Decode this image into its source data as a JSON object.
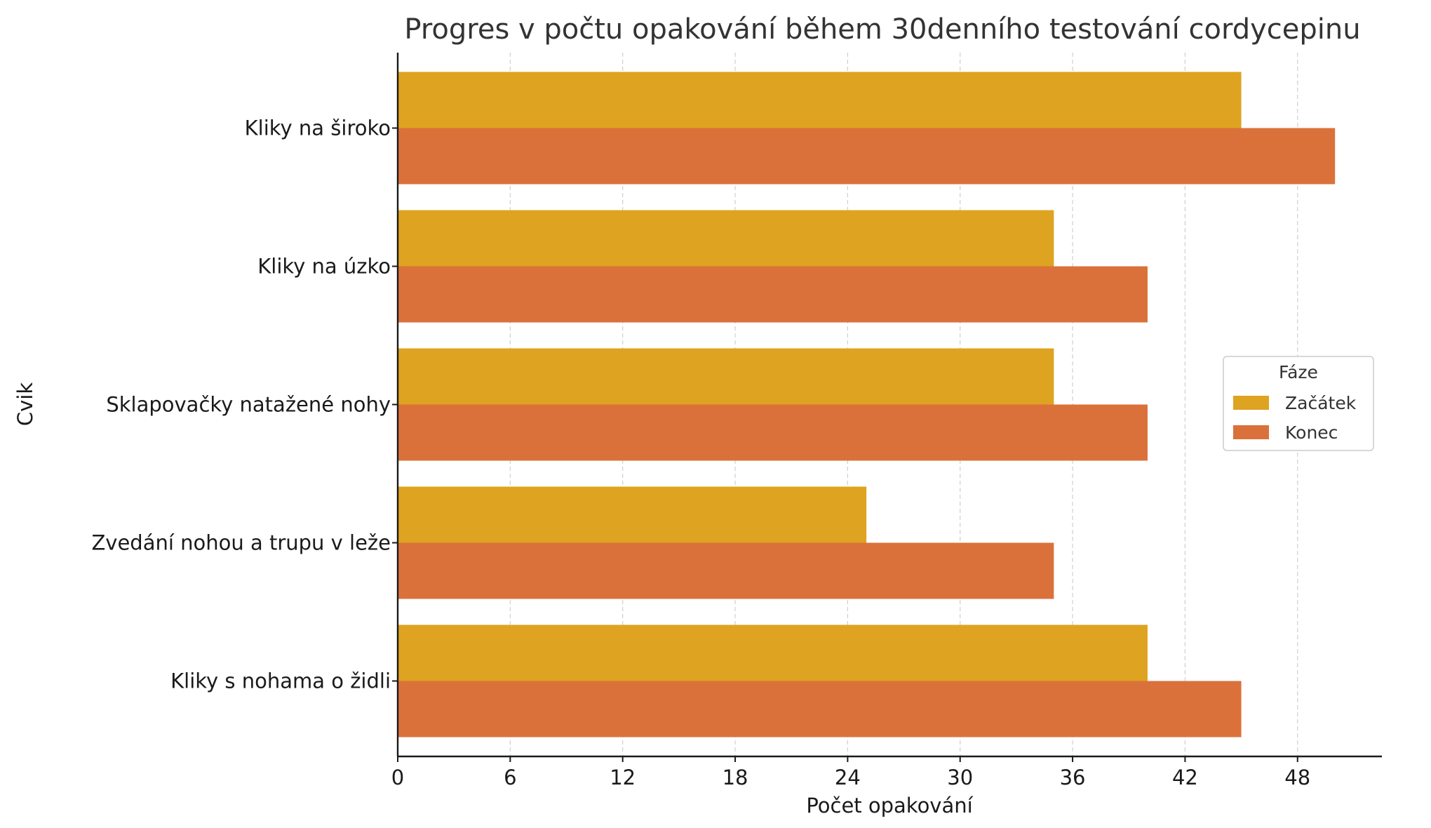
{
  "chart_data": {
    "type": "bar",
    "orientation": "horizontal",
    "title": "Progres v počtu opakování během 30denního testování cordycepinu",
    "xlabel": "Počet opakování",
    "ylabel": "Cvik",
    "categories": [
      "Kliky na široko",
      "Kliky na úzko",
      "Sklapovačky natažené nohy",
      "Zvedání nohou a trupu v leže",
      "Kliky s nohama o židli"
    ],
    "series": [
      {
        "name": "Začátek",
        "color": "#DEA320",
        "values": [
          45,
          35,
          35,
          25,
          40
        ]
      },
      {
        "name": "Konec",
        "color": "#DB713A",
        "values": [
          50,
          40,
          40,
          35,
          45
        ]
      }
    ],
    "xlim": [
      0,
      52.5
    ],
    "xticks": [
      0,
      6,
      12,
      18,
      24,
      30,
      36,
      42,
      48
    ],
    "grid": {
      "x": true,
      "y": false,
      "style": "dashed"
    },
    "legend": {
      "title": "Fáze",
      "placement": "center-right"
    }
  }
}
